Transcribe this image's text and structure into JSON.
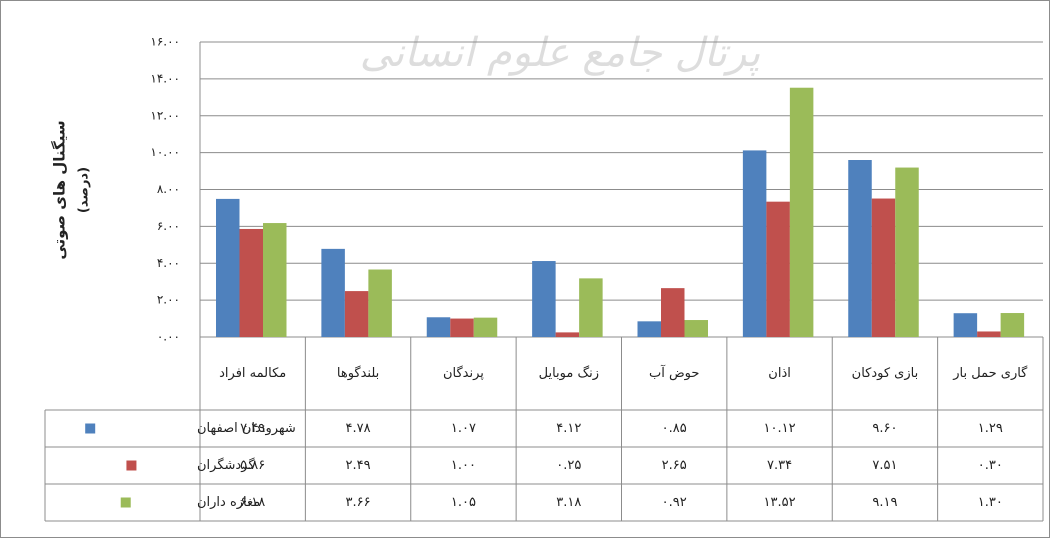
{
  "chart_data": {
    "type": "bar",
    "watermark": "پرتال جامع علوم انسانی",
    "y_label": "سیگنال های صوتی",
    "y_label_unit": "(درصد)",
    "categories": [
      "مکالمه افراد",
      "بلندگوها",
      "پرندگان",
      "زنگ موبایل",
      "حوض آب",
      "اذان",
      "بازی کودکان",
      "گاری حمل بار"
    ],
    "series": [
      {
        "name": "شهروندان اصفهان",
        "color": "#4f81bd",
        "values": [
          7.49,
          4.78,
          1.07,
          4.12,
          0.85,
          10.12,
          9.6,
          1.29
        ],
        "value_labels": [
          "۷.۴۹",
          "۴.۷۸",
          "۱.۰۷",
          "۴.۱۲",
          "۰.۸۵",
          "۱۰.۱۲",
          "۹.۶۰",
          "۱.۲۹"
        ]
      },
      {
        "name": "گردشگران",
        "color": "#c0504d",
        "values": [
          5.86,
          2.49,
          1.0,
          0.25,
          2.65,
          7.34,
          7.51,
          0.3
        ],
        "value_labels": [
          "۵.۸۶",
          "۲.۴۹",
          "۱.۰۰",
          "۰.۲۵",
          "۲.۶۵",
          "۷.۳۴",
          "۷.۵۱",
          "۰.۳۰"
        ]
      },
      {
        "name": "مغازه داران",
        "color": "#9bbb59",
        "values": [
          6.18,
          3.66,
          1.05,
          3.18,
          0.92,
          13.52,
          9.19,
          1.3
        ],
        "value_labels": [
          "۶.۱۸",
          "۳.۶۶",
          "۱.۰۵",
          "۳.۱۸",
          "۰.۹۲",
          "۱۳.۵۲",
          "۹.۱۹",
          "۱.۳۰"
        ]
      }
    ],
    "ylim": [
      0,
      16
    ],
    "yticks": [
      {
        "value": 0,
        "label": "۰.۰۰"
      },
      {
        "value": 2,
        "label": "۲.۰۰"
      },
      {
        "value": 4,
        "label": "۴.۰۰"
      },
      {
        "value": 6,
        "label": "۶.۰۰"
      },
      {
        "value": 8,
        "label": "۸.۰۰"
      },
      {
        "value": 10,
        "label": "۱۰.۰۰"
      },
      {
        "value": 12,
        "label": "۱۲.۰۰"
      },
      {
        "value": 14,
        "label": "۱۴.۰۰"
      },
      {
        "value": 16,
        "label": "۱۶.۰۰"
      }
    ],
    "grid": true
  }
}
